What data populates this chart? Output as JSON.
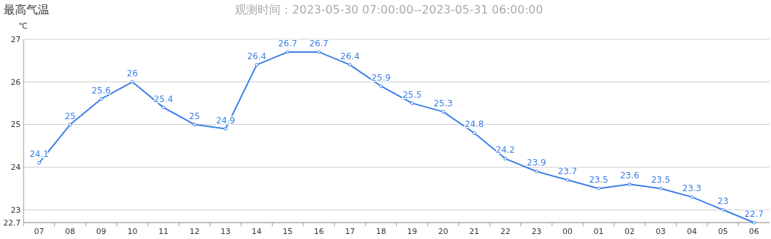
{
  "chart_data": {
    "type": "line",
    "title": "最高气温",
    "subtitle": "观测时间：2023-05-30 07:00:00--2023-05-31 06:00:00",
    "ylabel": "℃",
    "categories": [
      "07",
      "08",
      "09",
      "10",
      "11",
      "12",
      "13",
      "14",
      "15",
      "16",
      "17",
      "18",
      "19",
      "20",
      "21",
      "22",
      "23",
      "00",
      "01",
      "02",
      "03",
      "04",
      "05",
      "06"
    ],
    "series": [
      {
        "color": "#3a7ee8",
        "values": [
          24.1,
          25,
          25.6,
          26,
          25.4,
          25,
          24.9,
          26.4,
          26.7,
          26.7,
          26.4,
          25.9,
          25.5,
          25.3,
          24.8,
          24.2,
          23.9,
          23.7,
          23.5,
          23.6,
          23.5,
          23.3,
          23,
          22.7
        ]
      }
    ],
    "ylim": [
      22.7,
      27
    ],
    "yticks": [
      22.7,
      23,
      24,
      25,
      26,
      27
    ],
    "grid": "y",
    "data_labels": true,
    "marker": "circle",
    "line_style": "solid"
  }
}
